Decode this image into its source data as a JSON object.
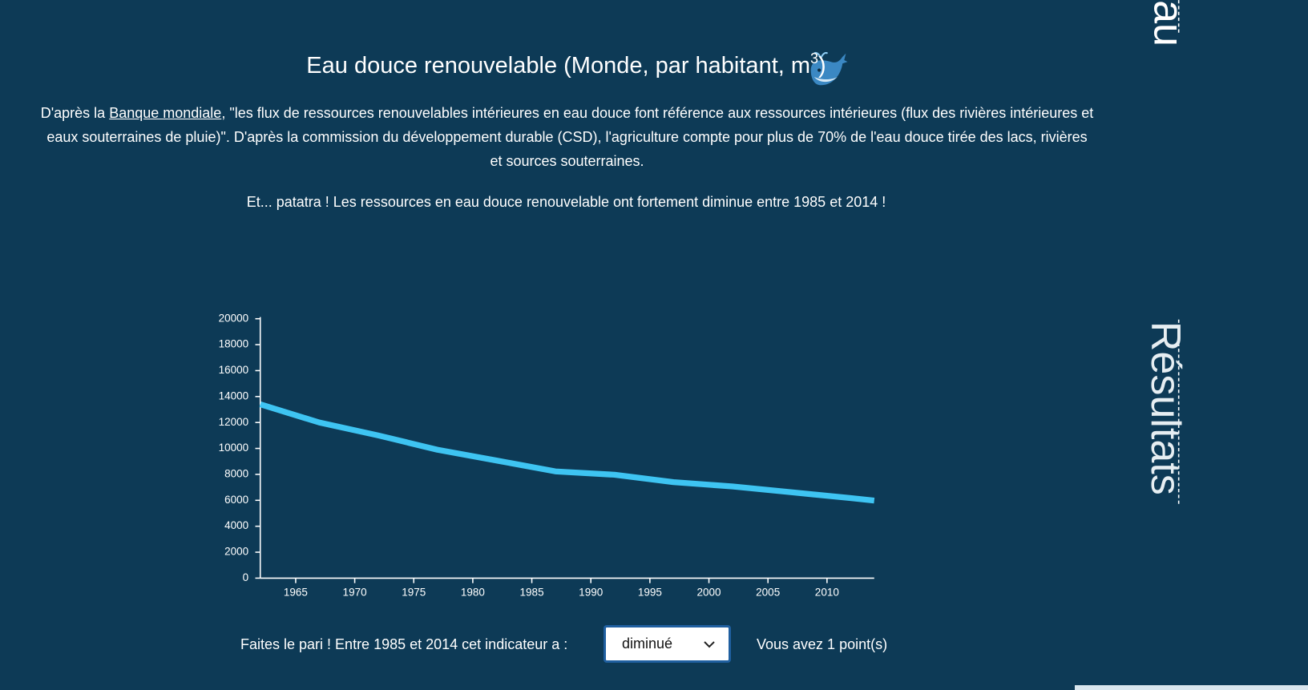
{
  "side_labels": {
    "top": "au",
    "results": "Résultats"
  },
  "header": {
    "title": "Eau douce renouvelable (Monde, par habitant, m",
    "title_sup": "3",
    "title_end": ")"
  },
  "intro": {
    "lead": "D'après la ",
    "link": "Banque mondiale",
    "text": ", \"les flux de ressources renouvelables intérieures en eau douce font référence aux ressources intérieures (flux des rivières intérieures et eaux souterraines de pluie)\". D'après la commission du développement durable (CSD), l'agriculture compte pour plus de 70% de l'eau douce tirée des lacs, rivières et sources souterraines."
  },
  "conclusion": "Et... patatra ! Les ressources en eau douce renouvelable ont fortement diminue entre 1985 et 2014 !",
  "chart_data": {
    "type": "line",
    "x": [
      1962,
      1967,
      1972,
      1977,
      1982,
      1987,
      1992,
      1997,
      2002,
      2007,
      2012,
      2014
    ],
    "series": [
      {
        "color": "#3ec4f2",
        "values": [
          13400,
          12000,
          11000,
          9900,
          9070,
          8230,
          7970,
          7400,
          7070,
          6620,
          6170,
          5980
        ]
      }
    ],
    "xlim": [
      1962,
      2014
    ],
    "xticks": [
      1965,
      1970,
      1975,
      1980,
      1985,
      1990,
      1995,
      2000,
      2005,
      2010
    ],
    "ylim": [
      0,
      20000
    ],
    "yticks": [
      0,
      2000,
      4000,
      6000,
      8000,
      10000,
      12000,
      14000,
      16000,
      18000,
      20000
    ]
  },
  "bet": {
    "prompt": "Faites le pari ! Entre 1985 et 2014 cet indicateur a :",
    "choice": "diminué",
    "score": "Vous avez 1 point(s)"
  }
}
